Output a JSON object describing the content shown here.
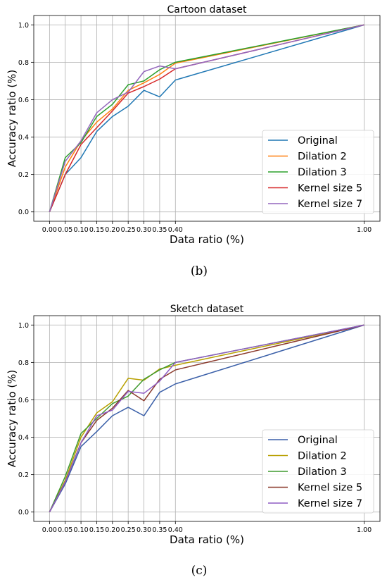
{
  "chart_data": [
    {
      "type": "line",
      "title": "Cartoon dataset",
      "xlabel": "Data ratio (%)",
      "ylabel": "Accuracy ratio (%)",
      "caption": "(b)",
      "x": [
        0.0,
        0.05,
        0.1,
        0.15,
        0.2,
        0.25,
        0.3,
        0.35,
        0.4,
        1.0
      ],
      "x_tick_labels": [
        "0.00",
        "0.05",
        "0.10",
        "0.15",
        "0.20",
        "0.25",
        "0.30",
        "0.35",
        "0.40",
        "1.00"
      ],
      "y_ticks": [
        0.0,
        0.2,
        0.4,
        0.6,
        0.8,
        1.0
      ],
      "y_tick_labels": [
        "0.0",
        "0.2",
        "0.4",
        "0.6",
        "0.8",
        "1.0"
      ],
      "xlim": [
        -0.05,
        1.05
      ],
      "ylim": [
        -0.05,
        1.05
      ],
      "grid": true,
      "legend_position": "lower-right",
      "series": [
        {
          "name": "Original",
          "color": "#1f77b4",
          "values": [
            0.0,
            0.2,
            0.29,
            0.43,
            0.51,
            0.565,
            0.65,
            0.615,
            0.705,
            1.0
          ]
        },
        {
          "name": "Dilation 2",
          "color": "#ff7f0e",
          "values": [
            0.0,
            0.24,
            0.38,
            0.48,
            0.55,
            0.65,
            0.69,
            0.735,
            0.795,
            1.0
          ]
        },
        {
          "name": "Dilation 3",
          "color": "#2ca02c",
          "values": [
            0.0,
            0.29,
            0.37,
            0.51,
            0.575,
            0.68,
            0.7,
            0.76,
            0.8,
            1.0
          ]
        },
        {
          "name": "Kernel size 5",
          "color": "#d62728",
          "values": [
            0.0,
            0.2,
            0.36,
            0.45,
            0.54,
            0.635,
            0.67,
            0.71,
            0.765,
            1.0
          ]
        },
        {
          "name": "Kernel size 7",
          "color": "#9467bd",
          "values": [
            0.0,
            0.27,
            0.38,
            0.53,
            0.6,
            0.64,
            0.75,
            0.78,
            0.765,
            1.0
          ]
        }
      ]
    },
    {
      "type": "line",
      "title": "Sketch dataset",
      "xlabel": "Data ratio (%)",
      "ylabel": "Accuracy ratio (%)",
      "caption": "(c)",
      "x": [
        0.0,
        0.05,
        0.1,
        0.15,
        0.2,
        0.25,
        0.3,
        0.35,
        0.4,
        1.0
      ],
      "x_tick_labels": [
        "0.00",
        "0.05",
        "0.10",
        "0.15",
        "0.20",
        "0.25",
        "0.30",
        "0.35",
        "0.40",
        "1.00"
      ],
      "y_ticks": [
        0.0,
        0.2,
        0.4,
        0.6,
        0.8,
        1.0
      ],
      "y_tick_labels": [
        "0.0",
        "0.2",
        "0.4",
        "0.6",
        "0.8",
        "1.0"
      ],
      "xlim": [
        -0.05,
        1.05
      ],
      "ylim": [
        -0.05,
        1.05
      ],
      "grid": true,
      "legend_position": "lower-right",
      "series": [
        {
          "name": "Original",
          "color": "#3a5fa8",
          "values": [
            0.0,
            0.15,
            0.35,
            0.43,
            0.515,
            0.56,
            0.515,
            0.64,
            0.685,
            1.0
          ]
        },
        {
          "name": "Dilation 2",
          "color": "#b8a000",
          "values": [
            0.0,
            0.17,
            0.4,
            0.53,
            0.59,
            0.715,
            0.705,
            0.765,
            0.785,
            1.0
          ]
        },
        {
          "name": "Dilation 3",
          "color": "#3f9a2e",
          "values": [
            0.0,
            0.19,
            0.42,
            0.5,
            0.58,
            0.62,
            0.71,
            0.76,
            0.8,
            1.0
          ]
        },
        {
          "name": "Kernel size 5",
          "color": "#8b3a2c",
          "values": [
            0.0,
            0.16,
            0.37,
            0.49,
            0.555,
            0.65,
            0.595,
            0.71,
            0.76,
            1.0
          ]
        },
        {
          "name": "Kernel size 7",
          "color": "#8e5cc4",
          "values": [
            0.0,
            0.16,
            0.37,
            0.515,
            0.545,
            0.645,
            0.635,
            0.7,
            0.8,
            1.0
          ]
        }
      ]
    }
  ]
}
